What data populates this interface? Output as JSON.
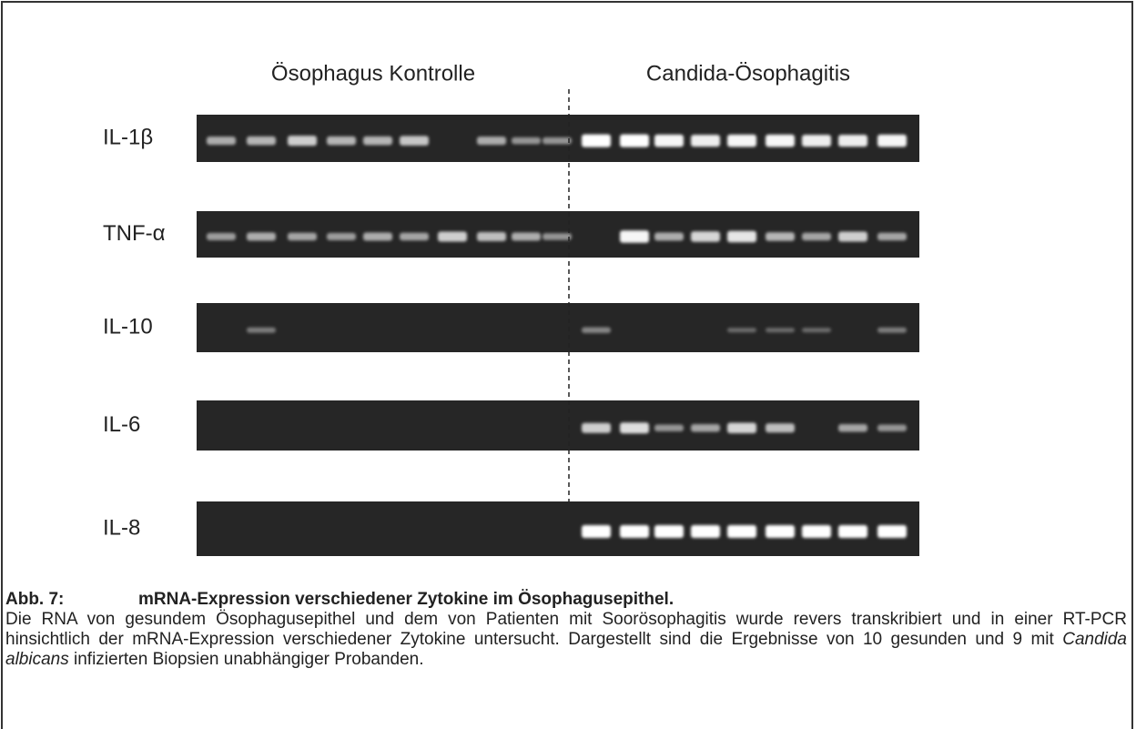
{
  "figure": {
    "group_labels": [
      "Ösophagus Kontrolle",
      "Candida-Ösophagitis"
    ],
    "rows": [
      "IL-1β",
      "TNF-α",
      "IL-10",
      "IL-6",
      "IL-8"
    ]
  },
  "caption": {
    "label": "Abb. 7:",
    "title": "mRNA-Expression verschiedener Zytokine im Ösophagusepithel.",
    "text_before": "Die RNA von gesundem Ösophagusepithel und dem von Patienten mit Soorösophagitis wurde revers transkribiert und in einer RT-PCR hinsichtlich der mRNA-Expression verschiedener Zytokine untersucht. Dargestellt sind die Ergebnisse von 10 gesunden und 9 mit ",
    "text_italic": "Candida albicans",
    "text_after": " infizierten Biopsien unabhängiger Probanden."
  }
}
